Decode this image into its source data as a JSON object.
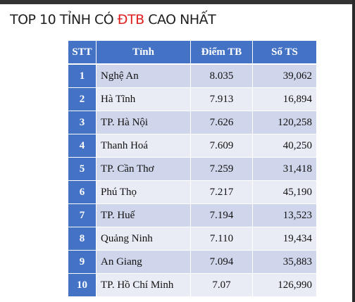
{
  "slide": {
    "title_prefix": "TOP 10 TỈNH CÓ ",
    "title_highlight": "ĐTB",
    "title_suffix": " CAO NHẤT",
    "highlight_color": "#e02020"
  },
  "table": {
    "headers": [
      "STT",
      "Tỉnh",
      "Điểm TB",
      "Số TS"
    ],
    "rows": [
      {
        "stt": "1",
        "province": "Nghệ An",
        "score": "8.035",
        "count": "39,062"
      },
      {
        "stt": "2",
        "province": "Hà Tĩnh",
        "score": "7.913",
        "count": "16,894"
      },
      {
        "stt": "3",
        "province": "TP. Hà Nội",
        "score": "7.626",
        "count": "120,258"
      },
      {
        "stt": "4",
        "province": "Thanh Hoá",
        "score": "7.609",
        "count": "40,250"
      },
      {
        "stt": "5",
        "province": "TP. Cần Thơ",
        "score": "7.259",
        "count": "31,418"
      },
      {
        "stt": "6",
        "province": "Phú Thọ",
        "score": "7.217",
        "count": "45,190"
      },
      {
        "stt": "7",
        "province": "TP. Huế",
        "score": "7.194",
        "count": "13,523"
      },
      {
        "stt": "8",
        "province": "Quảng Ninh",
        "score": "7.110",
        "count": "19,434"
      },
      {
        "stt": "9",
        "province": "An Giang",
        "score": "7.094",
        "count": "35,883"
      },
      {
        "stt": "10",
        "province": "TP. Hồ Chí Minh",
        "score": "7.07",
        "count": "126,990"
      }
    ],
    "header_color": "#4472c4",
    "row_color_odd": "#cfd5ea",
    "row_color_even": "#e9ebf5"
  }
}
